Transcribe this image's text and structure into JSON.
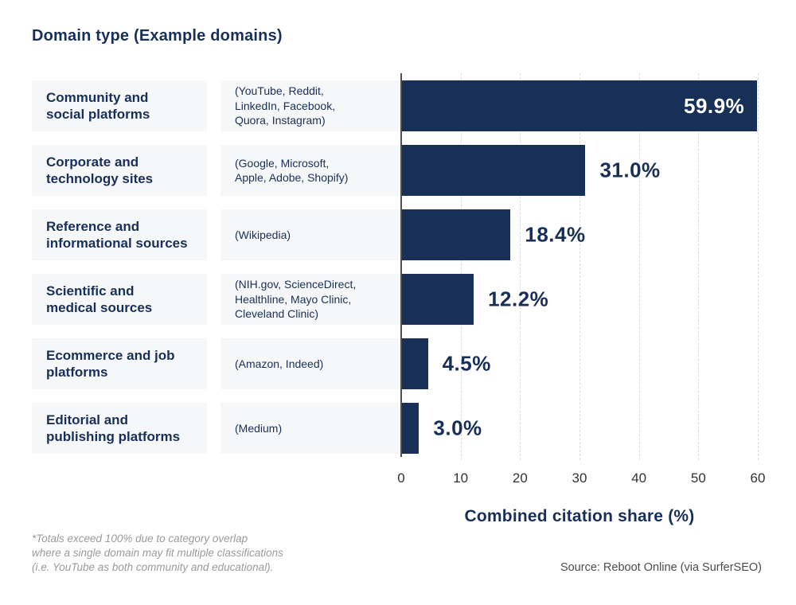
{
  "title": "Domain type (Example domains)",
  "chart_data": {
    "type": "bar",
    "orientation": "horizontal",
    "title": "Domain type (Example domains)",
    "xlabel": "Combined citation share (%)",
    "ylabel": "",
    "xlim": [
      0,
      60
    ],
    "x_ticks": [
      0,
      10,
      20,
      30,
      40,
      50,
      60
    ],
    "grid": "vertical dashed gridlines on",
    "legend": "none",
    "categories": [
      "Community and social platforms",
      "Corporate and technology sites",
      "Reference and informational sources",
      "Scientific and medical sources",
      "Ecommerce and job platforms",
      "Editorial and publishing platforms"
    ],
    "values": [
      59.9,
      31.0,
      18.4,
      12.2,
      4.5,
      3.0
    ],
    "rows": [
      {
        "category": "Community and\nsocial platforms",
        "examples": "(YouTube, Reddit,\nLinkedIn, Facebook,\nQuora, Instagram)",
        "value": 59.9,
        "label": "59.9%",
        "label_position": "inside"
      },
      {
        "category": "Corporate and\ntechnology sites",
        "examples": "(Google, Microsoft,\nApple, Adobe, Shopify)",
        "value": 31.0,
        "label": "31.0%",
        "label_position": "outside"
      },
      {
        "category": "Reference and\ninformational sources",
        "examples": "(Wikipedia)",
        "value": 18.4,
        "label": "18.4%",
        "label_position": "outside"
      },
      {
        "category": "Scientific and\nmedical sources",
        "examples": "(NIH.gov, ScienceDirect,\nHealthline, Mayo Clinic,\nCleveland Clinic)",
        "value": 12.2,
        "label": "12.2%",
        "label_position": "outside"
      },
      {
        "category": "Ecommerce and job\nplatforms",
        "examples": "(Amazon, Indeed)",
        "value": 4.5,
        "label": "4.5%",
        "label_position": "outside"
      },
      {
        "category": "Editorial and\npublishing platforms",
        "examples": "(Medium)",
        "value": 3.0,
        "label": "3.0%",
        "label_position": "outside"
      }
    ]
  },
  "footnote": "*Totals exceed 100% due to category overlap\nwhere a single domain may fit multiple classifications\n(i.e. YouTube as both community and educational).",
  "source": "Source: Reboot Online (via SurferSEO)",
  "colors": {
    "navy": "#182f58",
    "box_bg": "#f6f7f9",
    "gridline": "#dcdcdc",
    "axis": "#4f4f4f",
    "tick_text": "#333333",
    "footnote": "#9a9a9a",
    "source": "#4c4c4c",
    "value_label_inside": "#ffffff"
  }
}
